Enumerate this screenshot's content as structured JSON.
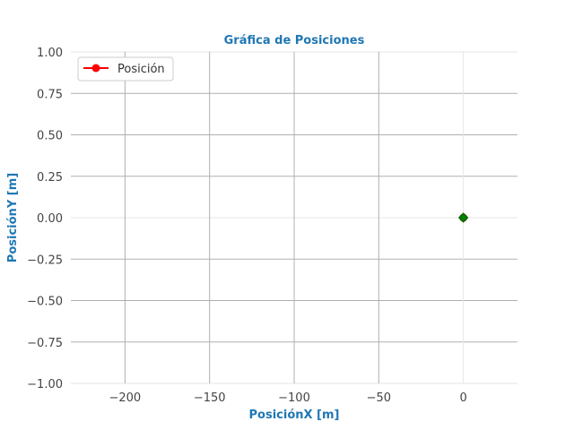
{
  "chart_data": {
    "type": "line",
    "title": "Gráfica de Posiciones",
    "xlabel": "PosiciónX [m]",
    "ylabel": "PosiciónY [m]",
    "xlim": [
      -232,
      32
    ],
    "ylim": [
      -1.0,
      1.0
    ],
    "xticks": [
      -200,
      -150,
      -100,
      -50,
      0
    ],
    "xtick_labels": [
      "−200",
      "−150",
      "−100",
      "−50",
      "0"
    ],
    "yticks": [
      1.0,
      0.75,
      0.5,
      0.25,
      0.0,
      -0.25,
      -0.5,
      -0.75,
      -1.0
    ],
    "ytick_labels": [
      "1.00",
      "0.75",
      "0.50",
      "0.25",
      "0.00",
      "−0.25",
      "−0.50",
      "−0.75",
      "−1.00"
    ],
    "grid": true,
    "legend_position": "top-left",
    "series": [
      {
        "name": "Posición",
        "color": "#ff0000",
        "marker": "circle",
        "x": [
          0
        ],
        "y": [
          0
        ]
      }
    ],
    "current_point": {
      "x": 0,
      "y": 0,
      "color": "#008000",
      "marker": "diamond"
    },
    "label_color": "#1f77b4",
    "grid_color": "#b0b0b0"
  }
}
